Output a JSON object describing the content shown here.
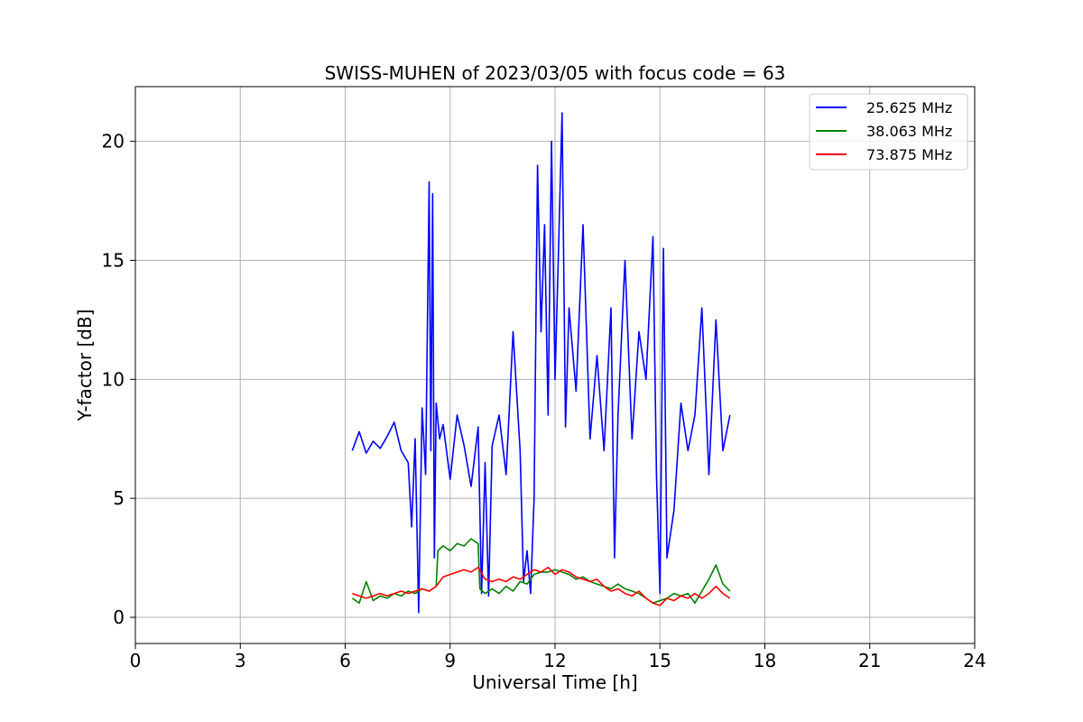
{
  "chart_data": {
    "type": "line",
    "title": "SWISS-MUHEN of 2023/03/05 with focus code = 63",
    "xlabel": "Universal Time [h]",
    "ylabel": "Y-factor [dB]",
    "xlim": [
      0,
      24
    ],
    "ylim": [
      -1.1,
      22.3
    ],
    "xticks": [
      0,
      3,
      6,
      9,
      12,
      15,
      18,
      21,
      24
    ],
    "yticks": [
      0,
      5,
      10,
      15,
      20
    ],
    "grid": true,
    "legend_position": "top-right",
    "series": [
      {
        "name": "25.625 MHz",
        "color": "#0000ff",
        "x": [
          6.2,
          6.4,
          6.6,
          6.8,
          7.0,
          7.2,
          7.4,
          7.6,
          7.8,
          7.9,
          8.0,
          8.1,
          8.2,
          8.3,
          8.4,
          8.45,
          8.5,
          8.55,
          8.6,
          8.7,
          8.8,
          9.0,
          9.2,
          9.4,
          9.6,
          9.8,
          9.9,
          10.0,
          10.1,
          10.2,
          10.4,
          10.6,
          10.8,
          11.0,
          11.1,
          11.2,
          11.3,
          11.4,
          11.5,
          11.6,
          11.7,
          11.8,
          11.9,
          12.0,
          12.1,
          12.2,
          12.3,
          12.4,
          12.6,
          12.8,
          13.0,
          13.2,
          13.4,
          13.6,
          13.7,
          13.8,
          14.0,
          14.2,
          14.4,
          14.6,
          14.8,
          14.9,
          15.0,
          15.1,
          15.2,
          15.4,
          15.6,
          15.8,
          16.0,
          16.2,
          16.4,
          16.6,
          16.8,
          17.0
        ],
        "values": [
          7.0,
          7.8,
          6.9,
          7.4,
          7.1,
          7.6,
          8.2,
          7.0,
          6.5,
          3.8,
          7.5,
          0.2,
          8.8,
          6.0,
          18.3,
          7.0,
          17.8,
          2.5,
          9.0,
          7.5,
          8.1,
          5.8,
          8.5,
          7.2,
          5.5,
          8.0,
          1.0,
          6.5,
          0.9,
          7.2,
          8.5,
          6.0,
          12.0,
          7.0,
          1.5,
          2.8,
          1.0,
          5.0,
          19.0,
          12.0,
          16.5,
          8.5,
          20.0,
          10.0,
          15.5,
          21.2,
          8.0,
          13.0,
          9.5,
          16.5,
          7.5,
          11.0,
          7.0,
          13.0,
          2.5,
          8.5,
          15.0,
          7.5,
          12.0,
          10.0,
          16.0,
          6.0,
          1.0,
          15.5,
          2.5,
          4.5,
          9.0,
          7.0,
          8.5,
          13.0,
          6.0,
          12.5,
          7.0,
          8.5
        ]
      },
      {
        "name": "38.063 MHz",
        "color": "#008000",
        "x": [
          6.2,
          6.4,
          6.6,
          6.8,
          7.0,
          7.2,
          7.4,
          7.6,
          7.8,
          8.0,
          8.2,
          8.4,
          8.6,
          8.65,
          8.8,
          9.0,
          9.2,
          9.4,
          9.6,
          9.8,
          9.85,
          10.0,
          10.2,
          10.4,
          10.6,
          10.8,
          11.0,
          11.2,
          11.4,
          11.6,
          11.8,
          12.0,
          12.2,
          12.4,
          12.6,
          12.8,
          13.0,
          13.2,
          13.4,
          13.6,
          13.8,
          14.0,
          14.2,
          14.4,
          14.6,
          14.8,
          15.0,
          15.2,
          15.4,
          15.6,
          15.8,
          16.0,
          16.2,
          16.4,
          16.6,
          16.8,
          17.0
        ],
        "values": [
          0.8,
          0.6,
          1.5,
          0.7,
          0.9,
          0.8,
          1.0,
          0.9,
          1.1,
          1.0,
          1.2,
          1.1,
          1.3,
          2.8,
          3.0,
          2.8,
          3.1,
          3.0,
          3.3,
          3.1,
          1.2,
          1.0,
          1.2,
          1.0,
          1.3,
          1.1,
          1.5,
          1.4,
          1.8,
          1.9,
          1.9,
          2.0,
          1.9,
          1.8,
          1.6,
          1.7,
          1.5,
          1.4,
          1.3,
          1.2,
          1.4,
          1.2,
          1.1,
          1.0,
          0.8,
          0.6,
          0.7,
          0.8,
          1.0,
          0.9,
          1.0,
          0.6,
          1.1,
          1.6,
          2.2,
          1.4,
          1.1
        ]
      },
      {
        "name": "73.875 MHz",
        "color": "#ff0000",
        "x": [
          6.2,
          6.4,
          6.6,
          6.8,
          7.0,
          7.2,
          7.4,
          7.6,
          7.8,
          8.0,
          8.2,
          8.4,
          8.6,
          8.8,
          9.0,
          9.2,
          9.4,
          9.6,
          9.8,
          10.0,
          10.2,
          10.4,
          10.6,
          10.8,
          11.0,
          11.2,
          11.4,
          11.6,
          11.8,
          12.0,
          12.2,
          12.4,
          12.6,
          12.8,
          13.0,
          13.2,
          13.4,
          13.6,
          13.8,
          14.0,
          14.2,
          14.4,
          14.6,
          14.8,
          15.0,
          15.2,
          15.4,
          15.6,
          15.8,
          16.0,
          16.2,
          16.4,
          16.6,
          16.8,
          17.0
        ],
        "values": [
          1.0,
          0.9,
          0.8,
          0.9,
          1.0,
          0.9,
          1.0,
          1.1,
          1.0,
          1.1,
          1.2,
          1.1,
          1.3,
          1.7,
          1.8,
          1.9,
          2.0,
          1.9,
          2.1,
          1.6,
          1.5,
          1.6,
          1.5,
          1.7,
          1.6,
          1.8,
          2.0,
          1.9,
          2.1,
          1.8,
          2.0,
          1.9,
          1.7,
          1.6,
          1.5,
          1.6,
          1.3,
          1.1,
          1.2,
          1.0,
          0.9,
          1.1,
          0.8,
          0.6,
          0.5,
          0.8,
          0.7,
          0.9,
          0.8,
          1.0,
          0.8,
          1.0,
          1.3,
          1.0,
          0.8
        ]
      }
    ]
  }
}
